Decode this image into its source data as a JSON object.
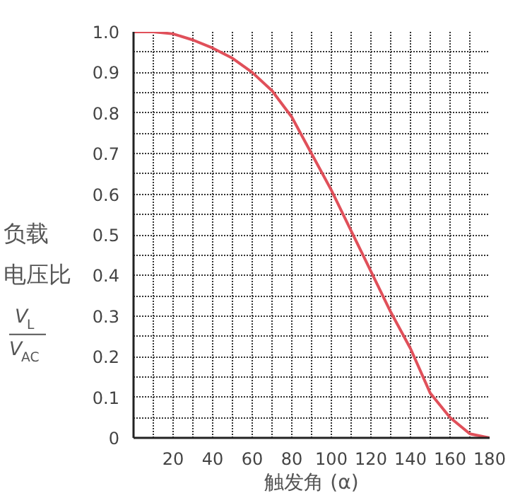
{
  "chart_data": {
    "type": "line",
    "xlabel": "触发角 (α)",
    "ylabel": "负载电压比",
    "annotations": [
      "V$_{L}$",
      "V$_{AC}$"
    ],
    "x": [
      0,
      10,
      20,
      30,
      40,
      50,
      60,
      70,
      80,
      90,
      100,
      110,
      120,
      130,
      140,
      150,
      160,
      170,
      180
    ],
    "series": [
      {
        "color": "#e0505a",
        "values": [
          1.0,
          1.0,
          0.995,
          0.98,
          0.96,
          0.935,
          0.9,
          0.855,
          0.79,
          0.7,
          0.61,
          0.51,
          0.41,
          0.31,
          0.22,
          0.11,
          0.05,
          0.01,
          0
        ]
      }
    ],
    "xlim": [
      0,
      180
    ],
    "ylim": [
      0,
      1
    ],
    "xticks": [
      {
        "value": 10,
        "label": null
      },
      20,
      {
        "value": 30,
        "label": null
      },
      40,
      {
        "value": 50,
        "label": null
      },
      60,
      {
        "value": 70,
        "label": null
      },
      80,
      {
        "value": 90,
        "label": null
      },
      100,
      {
        "value": 110,
        "label": null
      },
      120,
      {
        "value": 130,
        "label": null
      },
      140,
      {
        "value": 150,
        "label": null
      },
      160,
      {
        "value": 170,
        "label": null
      },
      180
    ],
    "yticks": [
      0,
      {
        "value": 0.05,
        "label": null
      },
      0.1,
      {
        "value": 0.15,
        "label": null
      },
      0.2,
      {
        "value": 0.25,
        "label": null
      },
      0.3,
      {
        "value": 0.35,
        "label": null
      },
      0.4,
      {
        "value": 0.45,
        "label": null
      },
      0.5,
      {
        "value": 0.55,
        "label": null
      },
      0.6,
      {
        "value": 0.65,
        "label": null
      },
      0.7,
      {
        "value": 0.75,
        "label": null
      },
      0.8,
      {
        "value": 0.85,
        "label": null
      },
      0.9,
      {
        "value": 0.95,
        "label": null
      },
      {
        "value": 1,
        "label": "1.0"
      }
    ],
    "grid": true,
    "line_style": "solid"
  }
}
